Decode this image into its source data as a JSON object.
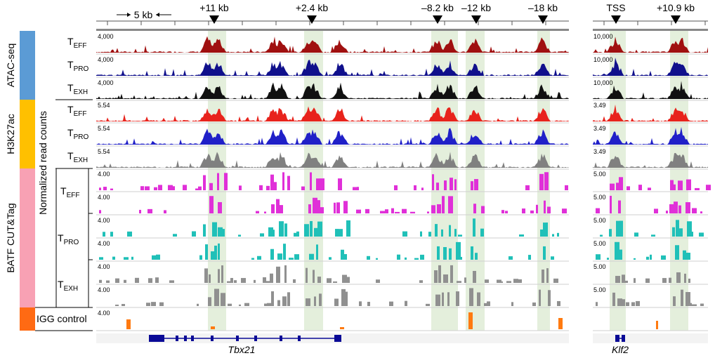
{
  "panels": {
    "left": {
      "gene": "Tbx21",
      "scale_label": "5 kb",
      "markers": [
        {
          "label": "+11 kb"
        },
        {
          "label": "+2.4 kb"
        },
        {
          "label": "–8.2 kb"
        },
        {
          "label": "–12 kb"
        },
        {
          "label": "–18 kb"
        }
      ]
    },
    "right": {
      "gene": "Klf2",
      "markers": [
        {
          "label": "TSS"
        },
        {
          "label": "+10.9 kb"
        }
      ]
    }
  },
  "groups": [
    {
      "label": "ATAC-seq",
      "color": "#5b9bd5"
    },
    {
      "label": "H3K27ac",
      "color": "#ffc000"
    },
    {
      "label": "BATF CUT&Tag",
      "color": "#f8a1b4"
    },
    {
      "label": "IGG control",
      "color": "#ff6a13"
    }
  ],
  "ylabel": "Normalized read counts",
  "tracks": [
    {
      "sample": "T",
      "sub": "EFF",
      "left_scale": "4,000",
      "right_scale": "10,000",
      "color": "#a01010"
    },
    {
      "sample": "T",
      "sub": "PRO",
      "left_scale": "4,000",
      "right_scale": "10,000",
      "color": "#10108c"
    },
    {
      "sample": "T",
      "sub": "EXH",
      "left_scale": "4,000",
      "right_scale": "10,000",
      "color": "#111111"
    },
    {
      "sample": "T",
      "sub": "EFF",
      "left_scale": "5.54",
      "right_scale": "3.49",
      "color": "#e8231c"
    },
    {
      "sample": "T",
      "sub": "PRO",
      "left_scale": "5.54",
      "right_scale": "3.49",
      "color": "#2020c8"
    },
    {
      "sample": "T",
      "sub": "EXH",
      "left_scale": "5.54",
      "right_scale": "3.49",
      "color": "#808080"
    },
    {
      "sample": "T",
      "sub": "EFF",
      "left_scale": "4.00",
      "right_scale": "5.00",
      "color": "#e030d8"
    },
    {
      "sample": "",
      "sub": "",
      "left_scale": "4.00",
      "right_scale": "5.00",
      "color": "#e030d8"
    },
    {
      "sample": "T",
      "sub": "PRO",
      "left_scale": "4.00",
      "right_scale": "5.00",
      "color": "#20c0b8"
    },
    {
      "sample": "",
      "sub": "",
      "left_scale": "4.00",
      "right_scale": "5.00",
      "color": "#20c0b8"
    },
    {
      "sample": "T",
      "sub": "EXH",
      "left_scale": "4.00",
      "right_scale": "5.00",
      "color": "#909090"
    },
    {
      "sample": "",
      "sub": "",
      "left_scale": "4.00",
      "right_scale": "5.00",
      "color": "#909090"
    },
    {
      "sample": "",
      "sub": "",
      "left_scale": "4.00",
      "right_scale": "",
      "color": "#ff7a10"
    }
  ],
  "colors": {
    "highlight": "#e4efdc",
    "gene_model": "#0a0a96",
    "track_bg": "#f3f3f3"
  }
}
